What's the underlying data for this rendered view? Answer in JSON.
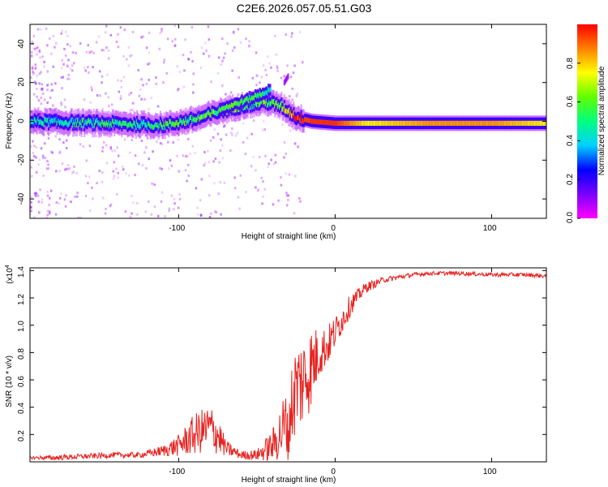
{
  "title": "C2E6.2026.057.05.51.G03",
  "colors": {
    "snr_line": "#e8221f",
    "frame": "#000000",
    "colormap": [
      "#ff00ff",
      "#7a00ff",
      "#0000ff",
      "#00d0ff",
      "#00ff7f",
      "#60ff00",
      "#ffff00",
      "#ff8000",
      "#ff0000"
    ]
  },
  "chart_data": [
    {
      "type": "heatmap",
      "name": "spectrogram",
      "xlabel": "Height of straight line (km)",
      "ylabel": "Frequency (Hz)",
      "xlim": [
        -195,
        135
      ],
      "ylim": [
        -50,
        50
      ],
      "x_ticks": [
        -100,
        0,
        100
      ],
      "x_tick_labels": [
        "-100",
        "0",
        "100"
      ],
      "y_ticks": [
        -40,
        -20,
        0,
        20,
        40
      ],
      "y_tick_labels": [
        "-40",
        "-20",
        "0",
        "20",
        "40"
      ],
      "ridge": {
        "x": [
          -195,
          -150,
          -110,
          -90,
          -75,
          -60,
          -45,
          -35,
          -25,
          -15,
          0,
          20,
          60,
          100,
          135
        ],
        "freq_hz": [
          0,
          -1,
          -2,
          1,
          5,
          8,
          10,
          8,
          2,
          0,
          -1,
          -1,
          -1,
          -1,
          -1
        ],
        "normalized_amplitude": [
          0.35,
          0.4,
          0.45,
          0.5,
          0.5,
          0.5,
          0.5,
          0.5,
          0.9,
          0.95,
          0.95,
          0.75,
          0.85,
          0.85,
          0.75
        ]
      },
      "secondary_ridge": {
        "x": [
          -75,
          -60,
          -48,
          -42
        ],
        "freq_hz": [
          6,
          10,
          14,
          16
        ],
        "normalized_amplitude": [
          0.5,
          0.5,
          0.45,
          0.3
        ]
      },
      "faint_branch": {
        "x": [
          -33,
          -30
        ],
        "freq_hz": [
          20,
          24
        ],
        "normalized_amplitude": [
          0.1,
          0.1
        ]
      },
      "colorbar": {
        "label": "Normalized spectral amplitude",
        "range": [
          0,
          1
        ],
        "ticks": [
          0.0,
          0.2,
          0.4,
          0.6,
          0.8
        ],
        "tick_labels": [
          "0.0",
          "0.2",
          "0.4",
          "0.6",
          "0.8"
        ]
      }
    },
    {
      "type": "line",
      "name": "snr",
      "xlabel": "Height of straight line (km)",
      "ylabel": "SNR (10 * v/v)",
      "y_scale_label": "(x10",
      "y_scale_exponent": "4",
      "xlim": [
        -195,
        135
      ],
      "ylim": [
        0,
        1.42
      ],
      "x_ticks": [
        -100,
        0,
        100
      ],
      "x_tick_labels": [
        "-100",
        "0",
        "100"
      ],
      "y_ticks": [
        0.2,
        0.4,
        0.6,
        0.8,
        1.0,
        1.2,
        1.4
      ],
      "y_tick_labels": [
        "0.2",
        "0.4",
        "0.6",
        "0.8",
        "1.0",
        "1.2",
        "1.4"
      ],
      "series": [
        {
          "name": "SNR",
          "x": [
            -195,
            -180,
            -160,
            -140,
            -125,
            -110,
            -100,
            -90,
            -80,
            -75,
            -70,
            -60,
            -50,
            -40,
            -30,
            -25,
            -20,
            -15,
            -10,
            -5,
            0,
            5,
            10,
            15,
            20,
            25,
            30,
            40,
            50,
            60,
            80,
            100,
            120,
            135
          ],
          "y": [
            0.03,
            0.03,
            0.04,
            0.05,
            0.05,
            0.08,
            0.12,
            0.2,
            0.25,
            0.2,
            0.1,
            0.05,
            0.05,
            0.12,
            0.3,
            0.55,
            0.6,
            0.7,
            0.8,
            0.85,
            0.95,
            1.05,
            1.15,
            1.22,
            1.28,
            1.3,
            1.33,
            1.35,
            1.37,
            1.38,
            1.38,
            1.37,
            1.37,
            1.36
          ],
          "noise_amplitude": [
            0.01,
            0.02,
            0.02,
            0.02,
            0.02,
            0.04,
            0.08,
            0.15,
            0.18,
            0.15,
            0.06,
            0.03,
            0.04,
            0.12,
            0.3,
            0.35,
            0.35,
            0.3,
            0.18,
            0.15,
            0.12,
            0.1,
            0.08,
            0.05,
            0.04,
            0.03,
            0.02,
            0.02,
            0.015,
            0.015,
            0.015,
            0.015,
            0.015,
            0.015
          ]
        }
      ]
    }
  ]
}
